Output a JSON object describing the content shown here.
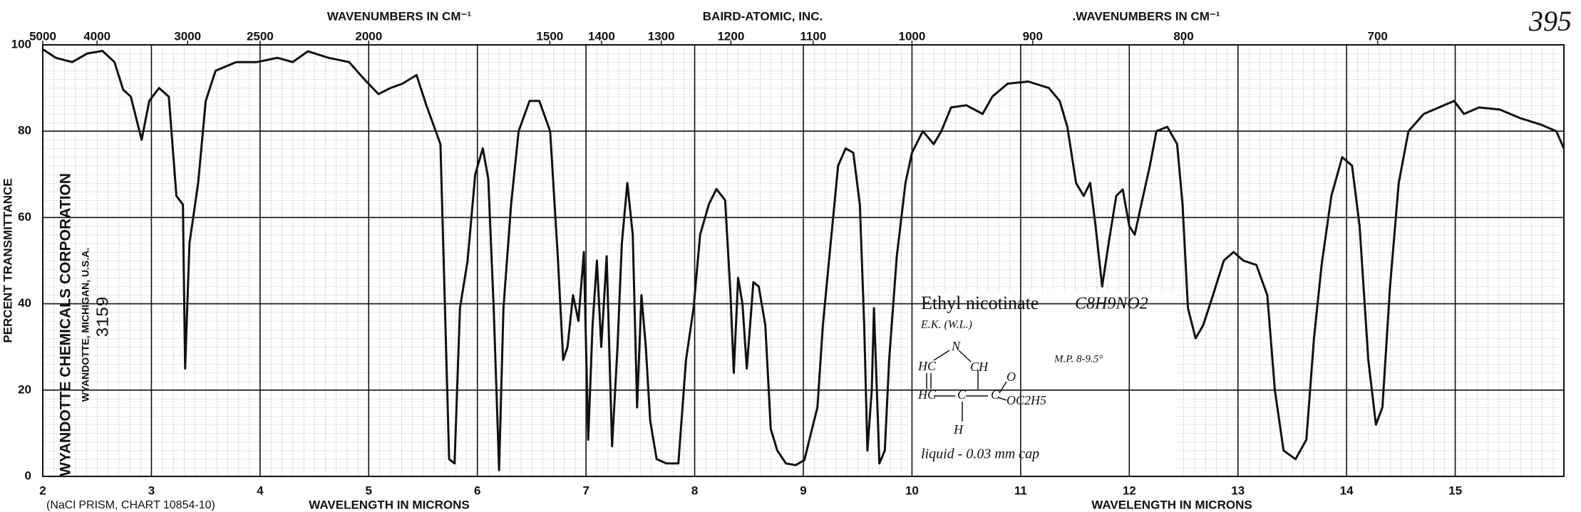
{
  "chart_data": {
    "type": "line",
    "x2label": "WAVENUMBERS IN CM⁻¹",
    "x2label_right": ".WAVENUMBERS IN CM⁻¹",
    "publisher": "BAIRD-ATOMIC, INC.",
    "chart_number": "395",
    "xlabel": "WAVELENGTH IN MICRONS",
    "xlabel_right": "WAVELENGTH IN MICRONS",
    "prism_note": "(NaCl PRISM, CHART 10854-10)",
    "ylabel": "PERCENT TRANSMITTANCE",
    "stamp": [
      "WYANDOTTE CHEMICALS CORPORATION",
      "WYANDOTTE, MICHIGAN, U.S.A.",
      "3159"
    ],
    "compound": {
      "name": "Ethyl nicotinate",
      "formula": "C8H9NO2",
      "source": "E.K. (W.L.)",
      "melting_point": "M.P. 8-9.5°",
      "sample": "liquid - 0.03 mm cap",
      "structure": [
        "N",
        "HC",
        "CH",
        "HC",
        "C",
        "C",
        "C",
        "O",
        "OC2H5",
        "H"
      ]
    },
    "xlim": [
      2,
      16
    ],
    "xticks": [
      2,
      3,
      4,
      5,
      6,
      7,
      8,
      9,
      10,
      11,
      12,
      13,
      14,
      15
    ],
    "x2ticks": [
      5000,
      4000,
      3000,
      2500,
      2000,
      1500,
      1400,
      1300,
      1200,
      1100,
      1000,
      900,
      800,
      700
    ],
    "ylim": [
      0,
      100
    ],
    "yticks": [
      0,
      20,
      40,
      60,
      80,
      100
    ],
    "grid": true,
    "x": [
      2.0,
      2.12,
      2.27,
      2.41,
      2.55,
      2.66,
      2.74,
      2.81,
      2.91,
      2.98,
      3.07,
      3.16,
      3.23,
      3.29,
      3.31,
      3.35,
      3.43,
      3.5,
      3.59,
      3.78,
      3.97,
      4.16,
      4.3,
      4.44,
      4.63,
      4.82,
      4.96,
      5.09,
      5.2,
      5.31,
      5.44,
      5.53,
      5.66,
      5.74,
      5.79,
      5.84,
      5.91,
      5.98,
      6.05,
      6.1,
      6.15,
      6.2,
      6.24,
      6.31,
      6.38,
      6.48,
      6.57,
      6.67,
      6.74,
      6.79,
      6.83,
      6.88,
      6.93,
      6.98,
      7.02,
      7.06,
      7.1,
      7.14,
      7.19,
      7.24,
      7.29,
      7.33,
      7.38,
      7.43,
      7.47,
      7.51,
      7.55,
      7.59,
      7.65,
      7.74,
      7.85,
      7.92,
      7.99,
      8.05,
      8.13,
      8.2,
      8.28,
      8.33,
      8.36,
      8.4,
      8.44,
      8.48,
      8.54,
      8.59,
      8.65,
      8.7,
      8.76,
      8.84,
      8.93,
      9.01,
      9.08,
      9.13,
      9.18,
      9.24,
      9.32,
      9.39,
      9.46,
      9.52,
      9.56,
      9.59,
      9.63,
      9.65,
      9.7,
      9.75,
      9.79,
      9.86,
      9.94,
      10.0,
      10.1,
      10.2,
      10.27,
      10.36,
      10.5,
      10.65,
      10.74,
      10.88,
      11.07,
      11.26,
      11.36,
      11.43,
      11.51,
      11.58,
      11.64,
      11.69,
      11.75,
      11.81,
      11.88,
      11.94,
      12.0,
      12.05,
      12.11,
      12.19,
      12.25,
      12.35,
      12.44,
      12.49,
      12.54,
      12.61,
      12.68,
      12.77,
      12.87,
      12.96,
      13.05,
      13.17,
      13.27,
      13.34,
      13.42,
      13.53,
      13.63,
      13.7,
      13.77,
      13.86,
      13.96,
      14.05,
      14.12,
      14.2,
      14.27,
      14.33,
      14.4,
      14.48,
      14.57,
      14.71,
      14.85,
      14.99,
      15.08,
      15.22,
      15.41,
      15.6,
      15.79,
      15.93,
      16.0
    ],
    "series": [
      {
        "color": "#111111",
        "values": [
          99,
          97,
          96,
          98,
          98.6,
          96,
          89.6,
          88,
          78,
          87,
          90,
          88,
          65,
          63,
          25,
          54,
          68,
          87,
          94,
          96,
          96,
          97,
          96,
          98.5,
          97,
          96,
          92,
          88.6,
          90,
          91,
          93,
          86,
          77,
          4,
          3,
          39,
          50,
          70,
          76,
          69,
          39,
          1.5,
          39,
          63,
          80,
          87,
          87,
          80,
          51,
          27,
          30,
          42,
          36,
          52,
          8.5,
          35,
          50,
          30,
          51,
          7,
          30,
          54,
          68,
          56,
          16,
          42,
          30,
          13,
          4,
          3,
          3,
          27,
          39,
          56,
          63,
          66.6,
          64,
          42,
          24,
          46,
          40,
          25,
          45,
          44,
          35,
          11,
          6,
          3,
          2.6,
          3.8,
          11,
          16,
          35,
          51,
          72,
          76,
          75,
          63,
          35,
          6,
          20,
          39,
          3,
          6,
          27,
          51,
          68,
          75,
          80,
          77,
          80,
          85.5,
          86,
          84,
          88,
          91,
          91.5,
          90,
          87,
          81,
          68,
          65,
          68,
          58,
          44,
          54,
          65,
          66.5,
          58,
          56,
          63,
          72,
          80,
          81,
          77,
          63,
          39,
          32,
          35,
          42,
          50,
          52,
          50,
          49,
          42,
          20,
          6,
          4,
          8.5,
          32,
          49,
          65,
          74,
          72,
          58,
          27,
          12,
          16,
          44,
          68,
          80,
          84,
          85.5,
          87,
          84,
          85.5,
          85,
          83,
          81.5,
          80,
          76
        ]
      }
    ]
  }
}
